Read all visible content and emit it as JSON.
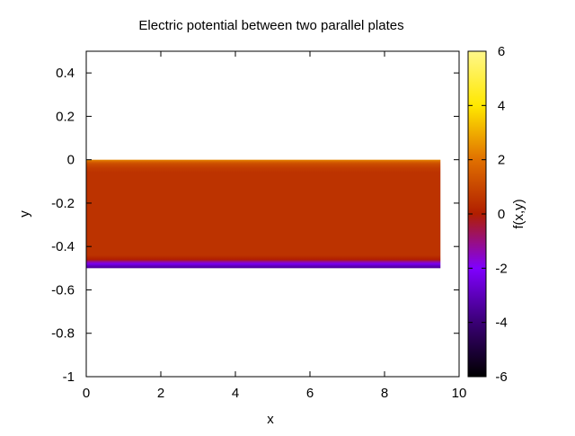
{
  "chart_data": {
    "type": "heatmap",
    "title": "Electric potential between two parallel plates",
    "xlabel": "x",
    "ylabel": "y",
    "colorbar_label": "f(x,y)",
    "xlim": [
      0,
      10
    ],
    "ylim": [
      -1,
      0.5
    ],
    "x_ticks": [
      0,
      2,
      4,
      6,
      8,
      10
    ],
    "y_ticks": [
      0.4,
      0.2,
      0,
      -0.2,
      -0.4,
      -0.6,
      -0.8,
      -1
    ],
    "colorbar_range": [
      -6,
      6
    ],
    "colorbar_ticks": [
      6,
      4,
      2,
      0,
      -2,
      -4,
      -6
    ],
    "palette": [
      "#000000",
      "#3a0075",
      "#8000ff",
      "#b01e00",
      "#e07000",
      "#ffe800",
      "#fff78a"
    ],
    "data_region": {
      "x_range": [
        0,
        9.5
      ],
      "y_range": [
        -0.5,
        0
      ],
      "potential_profile": [
        {
          "y": 0.0,
          "f": 2.4
        },
        {
          "y": -0.01,
          "f": 1.6
        },
        {
          "y": -0.02,
          "f": 1.1
        },
        {
          "y": -0.04,
          "f": 0.7
        },
        {
          "y": -0.06,
          "f": 0.5
        },
        {
          "y": -0.44,
          "f": 0.5
        },
        {
          "y": -0.46,
          "f": 0.0
        },
        {
          "y": -0.47,
          "f": -1.2
        },
        {
          "y": -0.48,
          "f": -2.2
        },
        {
          "y": -0.49,
          "f": -3.0
        },
        {
          "y": -0.5,
          "f": -3.5
        }
      ]
    },
    "grid": false,
    "legend": "none"
  }
}
